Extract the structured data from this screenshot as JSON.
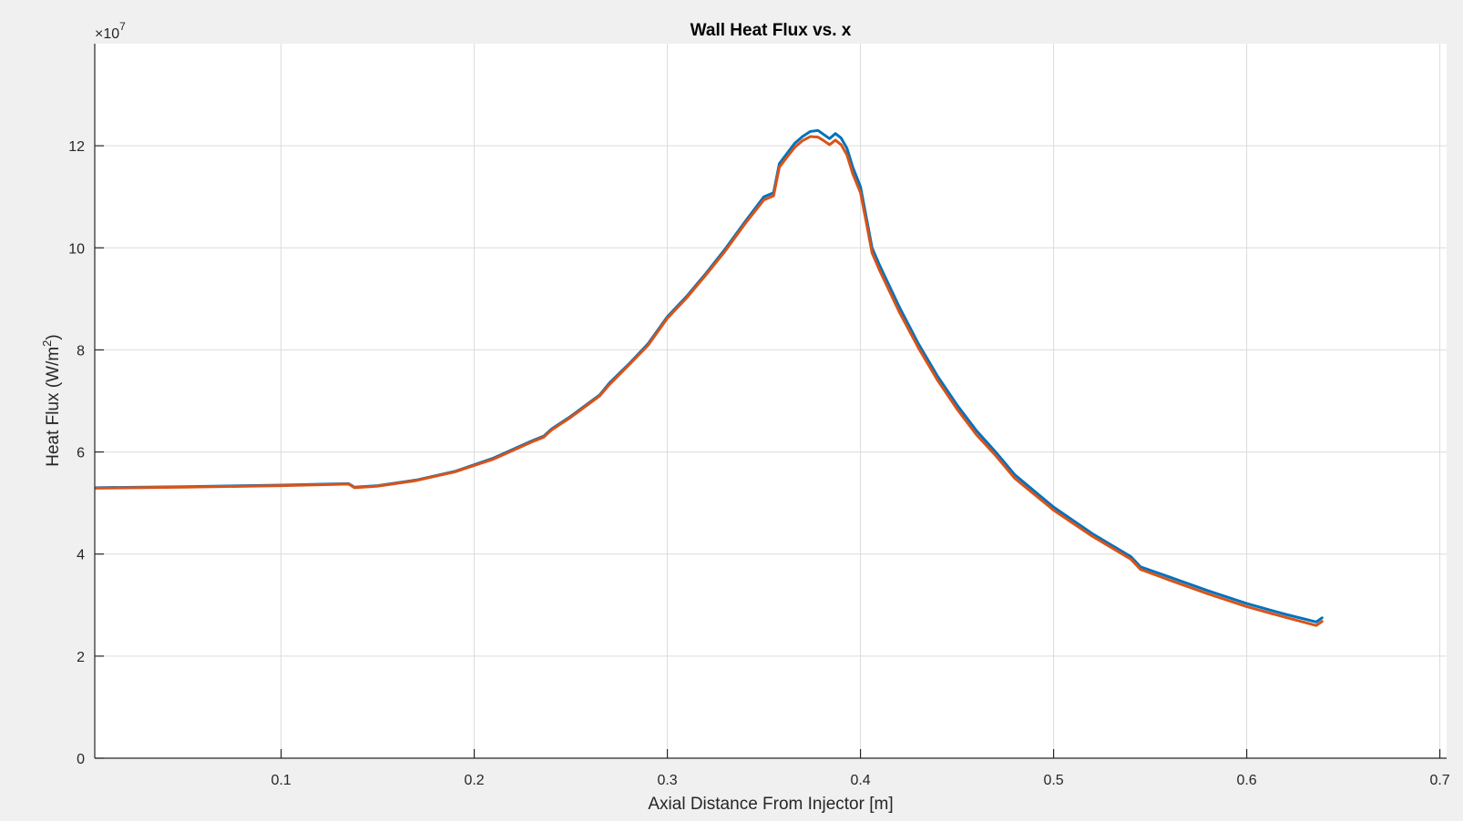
{
  "chart_data": {
    "type": "line",
    "title": "Wall Heat Flux vs. x",
    "xlabel": "Axial Distance From Injector [m]",
    "ylabel_main": "Heat Flux (W/m",
    "ylabel_sup": "2",
    "ylabel_end": ")",
    "y_exponent_base": "×10",
    "y_exponent_power": "7",
    "xlim": [
      0.0035,
      0.7035
    ],
    "ylim": [
      0,
      14
    ],
    "x_ticks": [
      0.1,
      0.2,
      0.3,
      0.4,
      0.5,
      0.6,
      0.7
    ],
    "x_tick_labels": [
      "0.1",
      "0.2",
      "0.3",
      "0.4",
      "0.5",
      "0.6",
      "0.7"
    ],
    "y_ticks": [
      0,
      2,
      4,
      6,
      8,
      10,
      12
    ],
    "y_tick_labels": [
      "0",
      "2",
      "4",
      "6",
      "8",
      "10",
      "12"
    ],
    "grid": true,
    "background": "#ffffff",
    "series": [
      {
        "color": "#0072bd",
        "x": [
          0.004,
          0.05,
          0.1,
          0.135,
          0.138,
          0.15,
          0.17,
          0.19,
          0.21,
          0.23,
          0.236,
          0.24,
          0.25,
          0.265,
          0.27,
          0.28,
          0.29,
          0.3,
          0.31,
          0.32,
          0.33,
          0.34,
          0.35,
          0.355,
          0.358,
          0.362,
          0.366,
          0.37,
          0.374,
          0.378,
          0.381,
          0.384,
          0.387,
          0.39,
          0.393,
          0.396,
          0.4,
          0.403,
          0.406,
          0.41,
          0.42,
          0.43,
          0.44,
          0.45,
          0.46,
          0.47,
          0.48,
          0.5,
          0.52,
          0.54,
          0.545,
          0.56,
          0.58,
          0.6,
          0.62,
          0.636,
          0.639
        ],
        "values": [
          5.3,
          5.32,
          5.35,
          5.38,
          5.31,
          5.34,
          5.45,
          5.62,
          5.88,
          6.22,
          6.31,
          6.45,
          6.7,
          7.12,
          7.35,
          7.72,
          8.12,
          8.65,
          9.05,
          9.5,
          9.98,
          10.5,
          11.0,
          11.08,
          11.65,
          11.85,
          12.05,
          12.18,
          12.28,
          12.3,
          12.22,
          12.14,
          12.24,
          12.15,
          11.95,
          11.58,
          11.2,
          10.6,
          10.0,
          9.65,
          8.85,
          8.12,
          7.48,
          6.92,
          6.42,
          6.0,
          5.55,
          4.92,
          4.4,
          3.95,
          3.75,
          3.55,
          3.28,
          3.03,
          2.82,
          2.67,
          2.75
        ]
      },
      {
        "color": "#d95319",
        "x": [
          0.004,
          0.05,
          0.1,
          0.135,
          0.138,
          0.15,
          0.17,
          0.19,
          0.21,
          0.23,
          0.236,
          0.24,
          0.25,
          0.265,
          0.27,
          0.28,
          0.29,
          0.3,
          0.31,
          0.32,
          0.33,
          0.34,
          0.35,
          0.355,
          0.358,
          0.362,
          0.366,
          0.37,
          0.374,
          0.378,
          0.381,
          0.384,
          0.387,
          0.39,
          0.393,
          0.396,
          0.4,
          0.403,
          0.406,
          0.41,
          0.42,
          0.43,
          0.44,
          0.45,
          0.46,
          0.47,
          0.48,
          0.5,
          0.52,
          0.54,
          0.545,
          0.56,
          0.58,
          0.6,
          0.62,
          0.636,
          0.639
        ],
        "values": [
          5.29,
          5.31,
          5.34,
          5.37,
          5.3,
          5.33,
          5.44,
          5.61,
          5.86,
          6.2,
          6.29,
          6.43,
          6.68,
          7.1,
          7.32,
          7.7,
          8.09,
          8.62,
          9.02,
          9.47,
          9.94,
          10.46,
          10.94,
          11.02,
          11.58,
          11.78,
          11.97,
          12.1,
          12.18,
          12.17,
          12.1,
          12.02,
          12.11,
          12.02,
          11.82,
          11.45,
          11.08,
          10.5,
          9.9,
          9.55,
          8.75,
          8.04,
          7.4,
          6.84,
          6.34,
          5.93,
          5.48,
          4.86,
          4.35,
          3.9,
          3.7,
          3.49,
          3.22,
          2.97,
          2.76,
          2.6,
          2.68
        ]
      }
    ]
  }
}
